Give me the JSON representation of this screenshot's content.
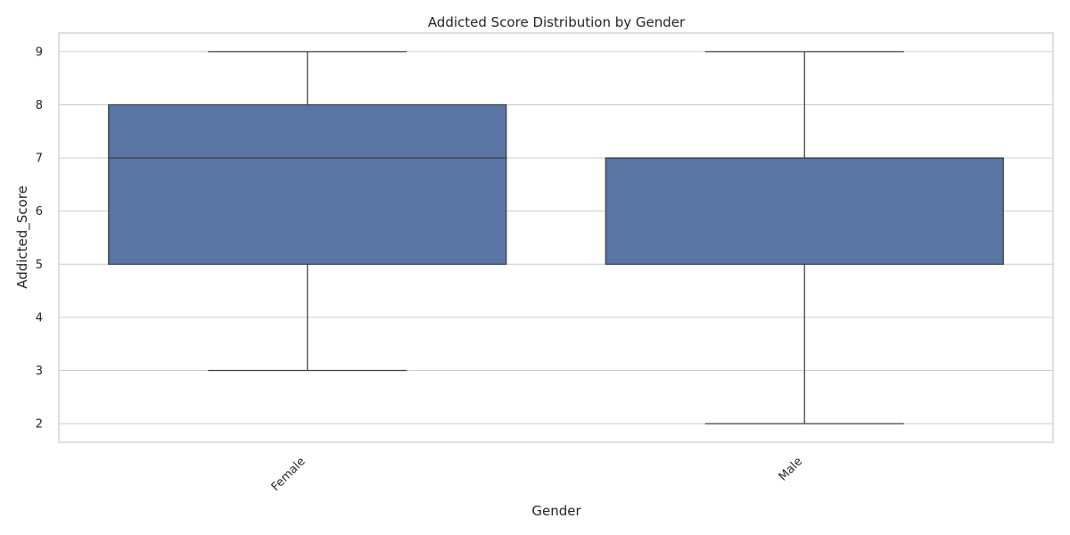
{
  "chart_data": {
    "type": "box",
    "title": "Addicted Score Distribution by Gender",
    "xlabel": "Gender",
    "ylabel": "Addicted_Score",
    "categories": [
      "Female",
      "Male"
    ],
    "boxes": [
      {
        "category": "Female",
        "whisker_low": 3,
        "q1": 5,
        "median": 7,
        "q3": 8,
        "whisker_high": 9
      },
      {
        "category": "Male",
        "whisker_low": 2,
        "q1": 5,
        "median": 7,
        "q3": 7,
        "whisker_high": 9
      }
    ],
    "ylim": [
      1.65,
      9.35
    ],
    "yticks": [
      2,
      3,
      4,
      5,
      6,
      7,
      8,
      9
    ],
    "grid": true,
    "box_color": "#5875a4",
    "line_color": "#3f3f3f",
    "grid_color": "#cccccc",
    "x_tick_rotation": "45deg"
  }
}
